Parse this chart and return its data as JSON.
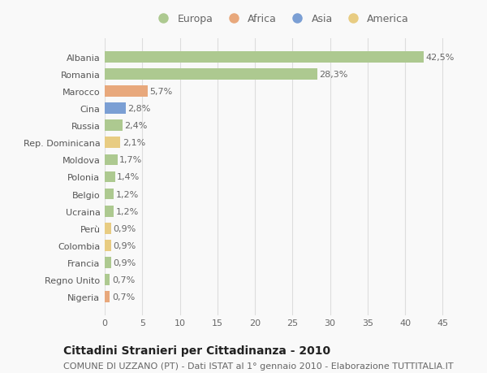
{
  "countries": [
    "Albania",
    "Romania",
    "Marocco",
    "Cina",
    "Russia",
    "Rep. Dominicana",
    "Moldova",
    "Polonia",
    "Belgio",
    "Ucraina",
    "Perù",
    "Colombia",
    "Francia",
    "Regno Unito",
    "Nigeria"
  ],
  "values": [
    42.5,
    28.3,
    5.7,
    2.8,
    2.4,
    2.1,
    1.7,
    1.4,
    1.2,
    1.2,
    0.9,
    0.9,
    0.9,
    0.7,
    0.7
  ],
  "continents": [
    "Europa",
    "Europa",
    "Africa",
    "Asia",
    "Europa",
    "America",
    "Europa",
    "Europa",
    "Europa",
    "Europa",
    "America",
    "America",
    "Europa",
    "Europa",
    "Africa"
  ],
  "colors": {
    "Europa": "#adc990",
    "Africa": "#e8a87c",
    "Asia": "#7b9fd4",
    "America": "#e8cc82"
  },
  "legend_order": [
    "Europa",
    "Africa",
    "Asia",
    "America"
  ],
  "labels": [
    "42,5%",
    "28,3%",
    "5,7%",
    "2,8%",
    "2,4%",
    "2,1%",
    "1,7%",
    "1,4%",
    "1,2%",
    "1,2%",
    "0,9%",
    "0,9%",
    "0,9%",
    "0,7%",
    "0,7%"
  ],
  "title": "Cittadini Stranieri per Cittadinanza - 2010",
  "subtitle": "COMUNE DI UZZANO (PT) - Dati ISTAT al 1° gennaio 2010 - Elaborazione TUTTITALIA.IT",
  "xlim": [
    0,
    47
  ],
  "xticks": [
    0,
    5,
    10,
    15,
    20,
    25,
    30,
    35,
    40,
    45
  ],
  "background_color": "#f9f9f9",
  "grid_color": "#dddddd",
  "bar_height": 0.65,
  "title_fontsize": 10,
  "subtitle_fontsize": 8,
  "label_fontsize": 8,
  "tick_fontsize": 8,
  "legend_fontsize": 9
}
